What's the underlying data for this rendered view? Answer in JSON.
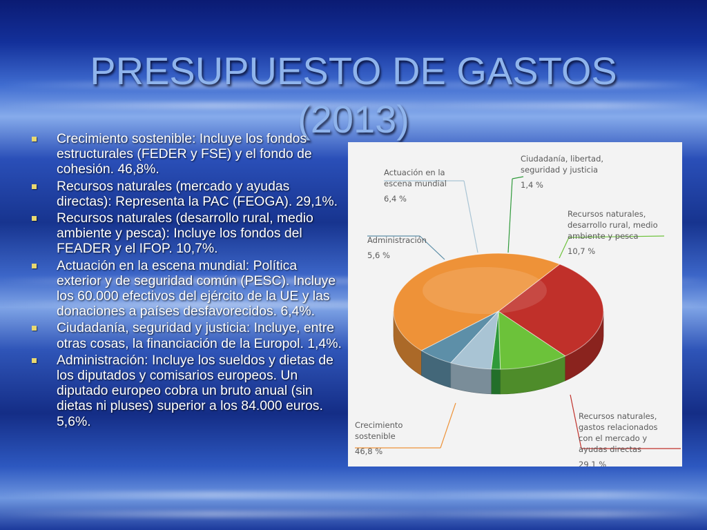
{
  "slide": {
    "title_lines": [
      "PRESUPUESTO DE GASTOS",
      "(2013)"
    ],
    "bullets": [
      "Crecimiento sostenible:  Incluye los fondos estructurales (FEDER y FSE) y el fondo de cohesión. 46,8%.",
      "Recursos naturales (mercado y ayudas directas): Representa la PAC (FEOGA). 29,1%.",
      "Recursos naturales (desarrollo rural, medio ambiente y pesca): Incluye los fondos del FEADER y el IFOP. 10,7%.",
      "Actuación en la escena mundial: Política exterior y de seguridad común (PESC). Incluye los 60.000 efectivos del ejército de la UE y las donaciones a países desfavorecidos. 6,4%.",
      "Ciudadanía, seguridad y justicia: Incluye, entre otras cosas, la financiación de la Europol. 1,4%.",
      "Administración: Incluye los sueldos y dietas de los diputados y comisarios europeos. Un diputado europeo cobra un bruto anual (sin dietas ni pluses) superior a los 84.000 euros. 5,6%."
    ],
    "colors": {
      "title": "#8fb4ec",
      "bullet_text": "#ffffff",
      "bullet_marker": "#e8d870"
    }
  },
  "chart_data": {
    "type": "pie",
    "title": "",
    "slices": [
      {
        "label_lines": [
          "Ciudadanía, libertad,",
          "seguridad y justicia"
        ],
        "pct_text": "1,4 %",
        "value": 1.4,
        "color": "#2f9a3a"
      },
      {
        "label_lines": [
          "Recursos naturales,",
          "desarrollo rural, medio",
          "ambiente y pesca"
        ],
        "pct_text": "10,7 %",
        "value": 10.7,
        "color": "#6cc23a"
      },
      {
        "label_lines": [
          "Recursos naturales,",
          "gastos relacionados",
          "con el mercado y",
          "ayudas directas"
        ],
        "pct_text": "29,1 %",
        "value": 29.1,
        "color": "#c0302a"
      },
      {
        "label_lines": [
          "Crecimiento",
          "sostenible"
        ],
        "pct_text": "46,8 %",
        "value": 46.8,
        "color": "#ee9238"
      },
      {
        "label_lines": [
          "Administración"
        ],
        "pct_text": "5,6 %",
        "value": 5.6,
        "color": "#5d8fa8"
      },
      {
        "label_lines": [
          "Actuación en la",
          "escena mundial"
        ],
        "pct_text": "6,4 %",
        "value": 6.4,
        "color": "#a9c4d4"
      }
    ]
  }
}
